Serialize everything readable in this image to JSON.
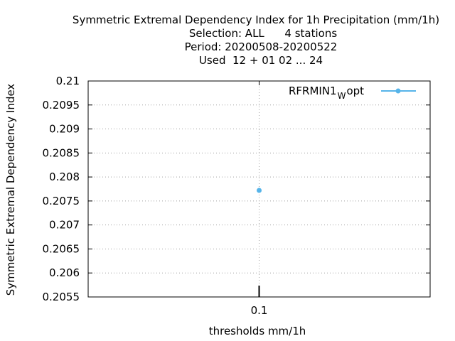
{
  "chart_data": {
    "type": "line",
    "title_lines": [
      "Symmetric Extremal Dependency Index  for 1h Precipitation (mm/1h)",
      "Selection: ALL      4 stations",
      "Period: 20200508-20200522",
      "Used  12 + 01 02 ... 24"
    ],
    "xlabel": "thresholds mm/1h",
    "ylabel": "Symmetric Extremal Dependency Index",
    "categories": [
      "0.1"
    ],
    "ylim": [
      0.2055,
      0.21
    ],
    "yticks": [
      0.2055,
      0.206,
      0.2065,
      0.207,
      0.2075,
      0.208,
      0.2085,
      0.209,
      0.2095,
      0.21
    ],
    "ytick_labels": [
      "0.2055",
      "0.206",
      "0.2065",
      "0.207",
      "0.2075",
      "0.208",
      "0.2085",
      "0.209",
      "0.2095",
      "0.21"
    ],
    "grid": true,
    "legend_position": "top-right",
    "series": [
      {
        "name": "RFRMIN1",
        "name_subscript": "W",
        "name_suffix": "opt",
        "color": "#56b4e9",
        "values": [
          0.20772
        ]
      }
    ]
  }
}
